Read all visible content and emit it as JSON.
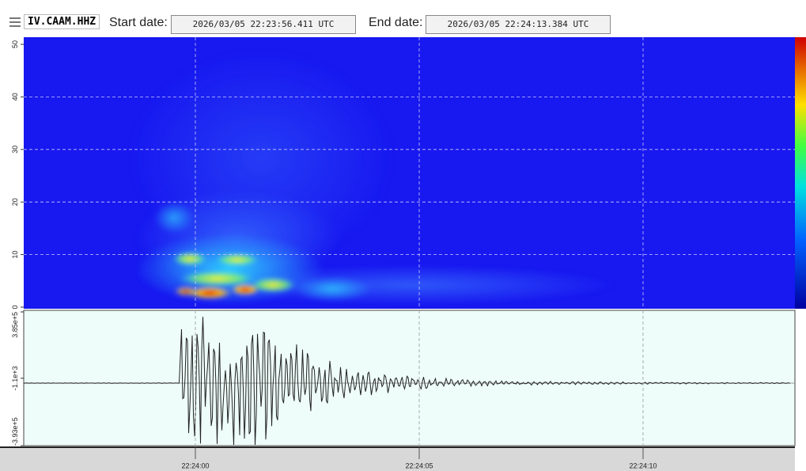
{
  "header": {
    "station": "IV.CAAM.HHZ",
    "start_label": "Start date:",
    "start_value": "2026/03/05 22:23:56.411 UTC",
    "end_label": "End date:",
    "end_value": "2026/03/05 22:24:13.384 UTC"
  },
  "spectrogram": {
    "yticks": [
      0,
      10,
      20,
      30,
      40,
      50
    ]
  },
  "waveform": {
    "yticks": [
      {
        "value": 385000,
        "label": "3.85e+5"
      },
      {
        "value": -1100,
        "label": "-1.1e+3"
      },
      {
        "value": -393000,
        "label": "-3.93e+5"
      }
    ]
  },
  "time_axis": {
    "labels": [
      "22:24:00",
      "22:24:05",
      "22:24:10"
    ]
  }
}
